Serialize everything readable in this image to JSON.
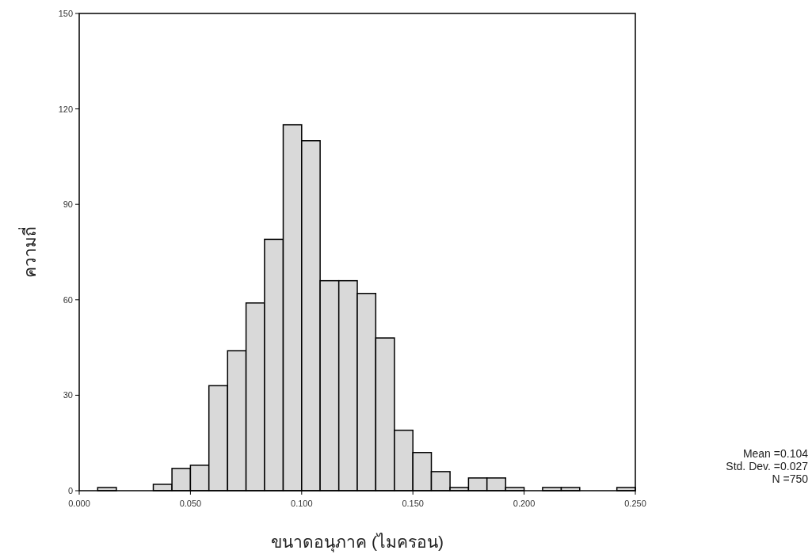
{
  "chart_data": {
    "type": "histogram",
    "xlabel": "ขนาดอนุภาค (ไมครอน)",
    "ylabel": "ความถี่",
    "bins": [
      0,
      0.0083,
      0.0167,
      0.025,
      0.0333,
      0.0417,
      0.05,
      0.0583,
      0.0667,
      0.075,
      0.0833,
      0.0917,
      0.1,
      0.1083,
      0.1167,
      0.125,
      0.1333,
      0.1417,
      0.15,
      0.1583,
      0.1667,
      0.175,
      0.1833,
      0.1917,
      0.2,
      0.2083,
      0.2167,
      0.225,
      0.2333,
      0.2417,
      0.25
    ],
    "values": [
      0,
      1,
      0,
      0,
      2,
      7,
      8,
      33,
      44,
      59,
      79,
      115,
      110,
      66,
      66,
      62,
      48,
      19,
      12,
      6,
      1,
      4,
      4,
      1,
      0,
      1,
      1,
      0,
      0,
      1
    ],
    "color": "#d9d9d9",
    "xlim": [
      0,
      0.25
    ],
    "xticks": [
      {
        "value": 0,
        "label": "0.000"
      },
      {
        "value": 0.05,
        "label": "0.050"
      },
      {
        "value": 0.1,
        "label": "0.100"
      },
      {
        "value": 0.15,
        "label": "0.150"
      },
      {
        "value": 0.2,
        "label": "0.200"
      },
      {
        "value": 0.25,
        "label": "0.250"
      }
    ],
    "ylim": [
      0,
      150
    ],
    "yticks": [
      0,
      30,
      60,
      90,
      120,
      150
    ],
    "grid": false,
    "annotations": [
      "Mean =0.104",
      "Std. Dev. =0.027",
      "N =750"
    ]
  }
}
